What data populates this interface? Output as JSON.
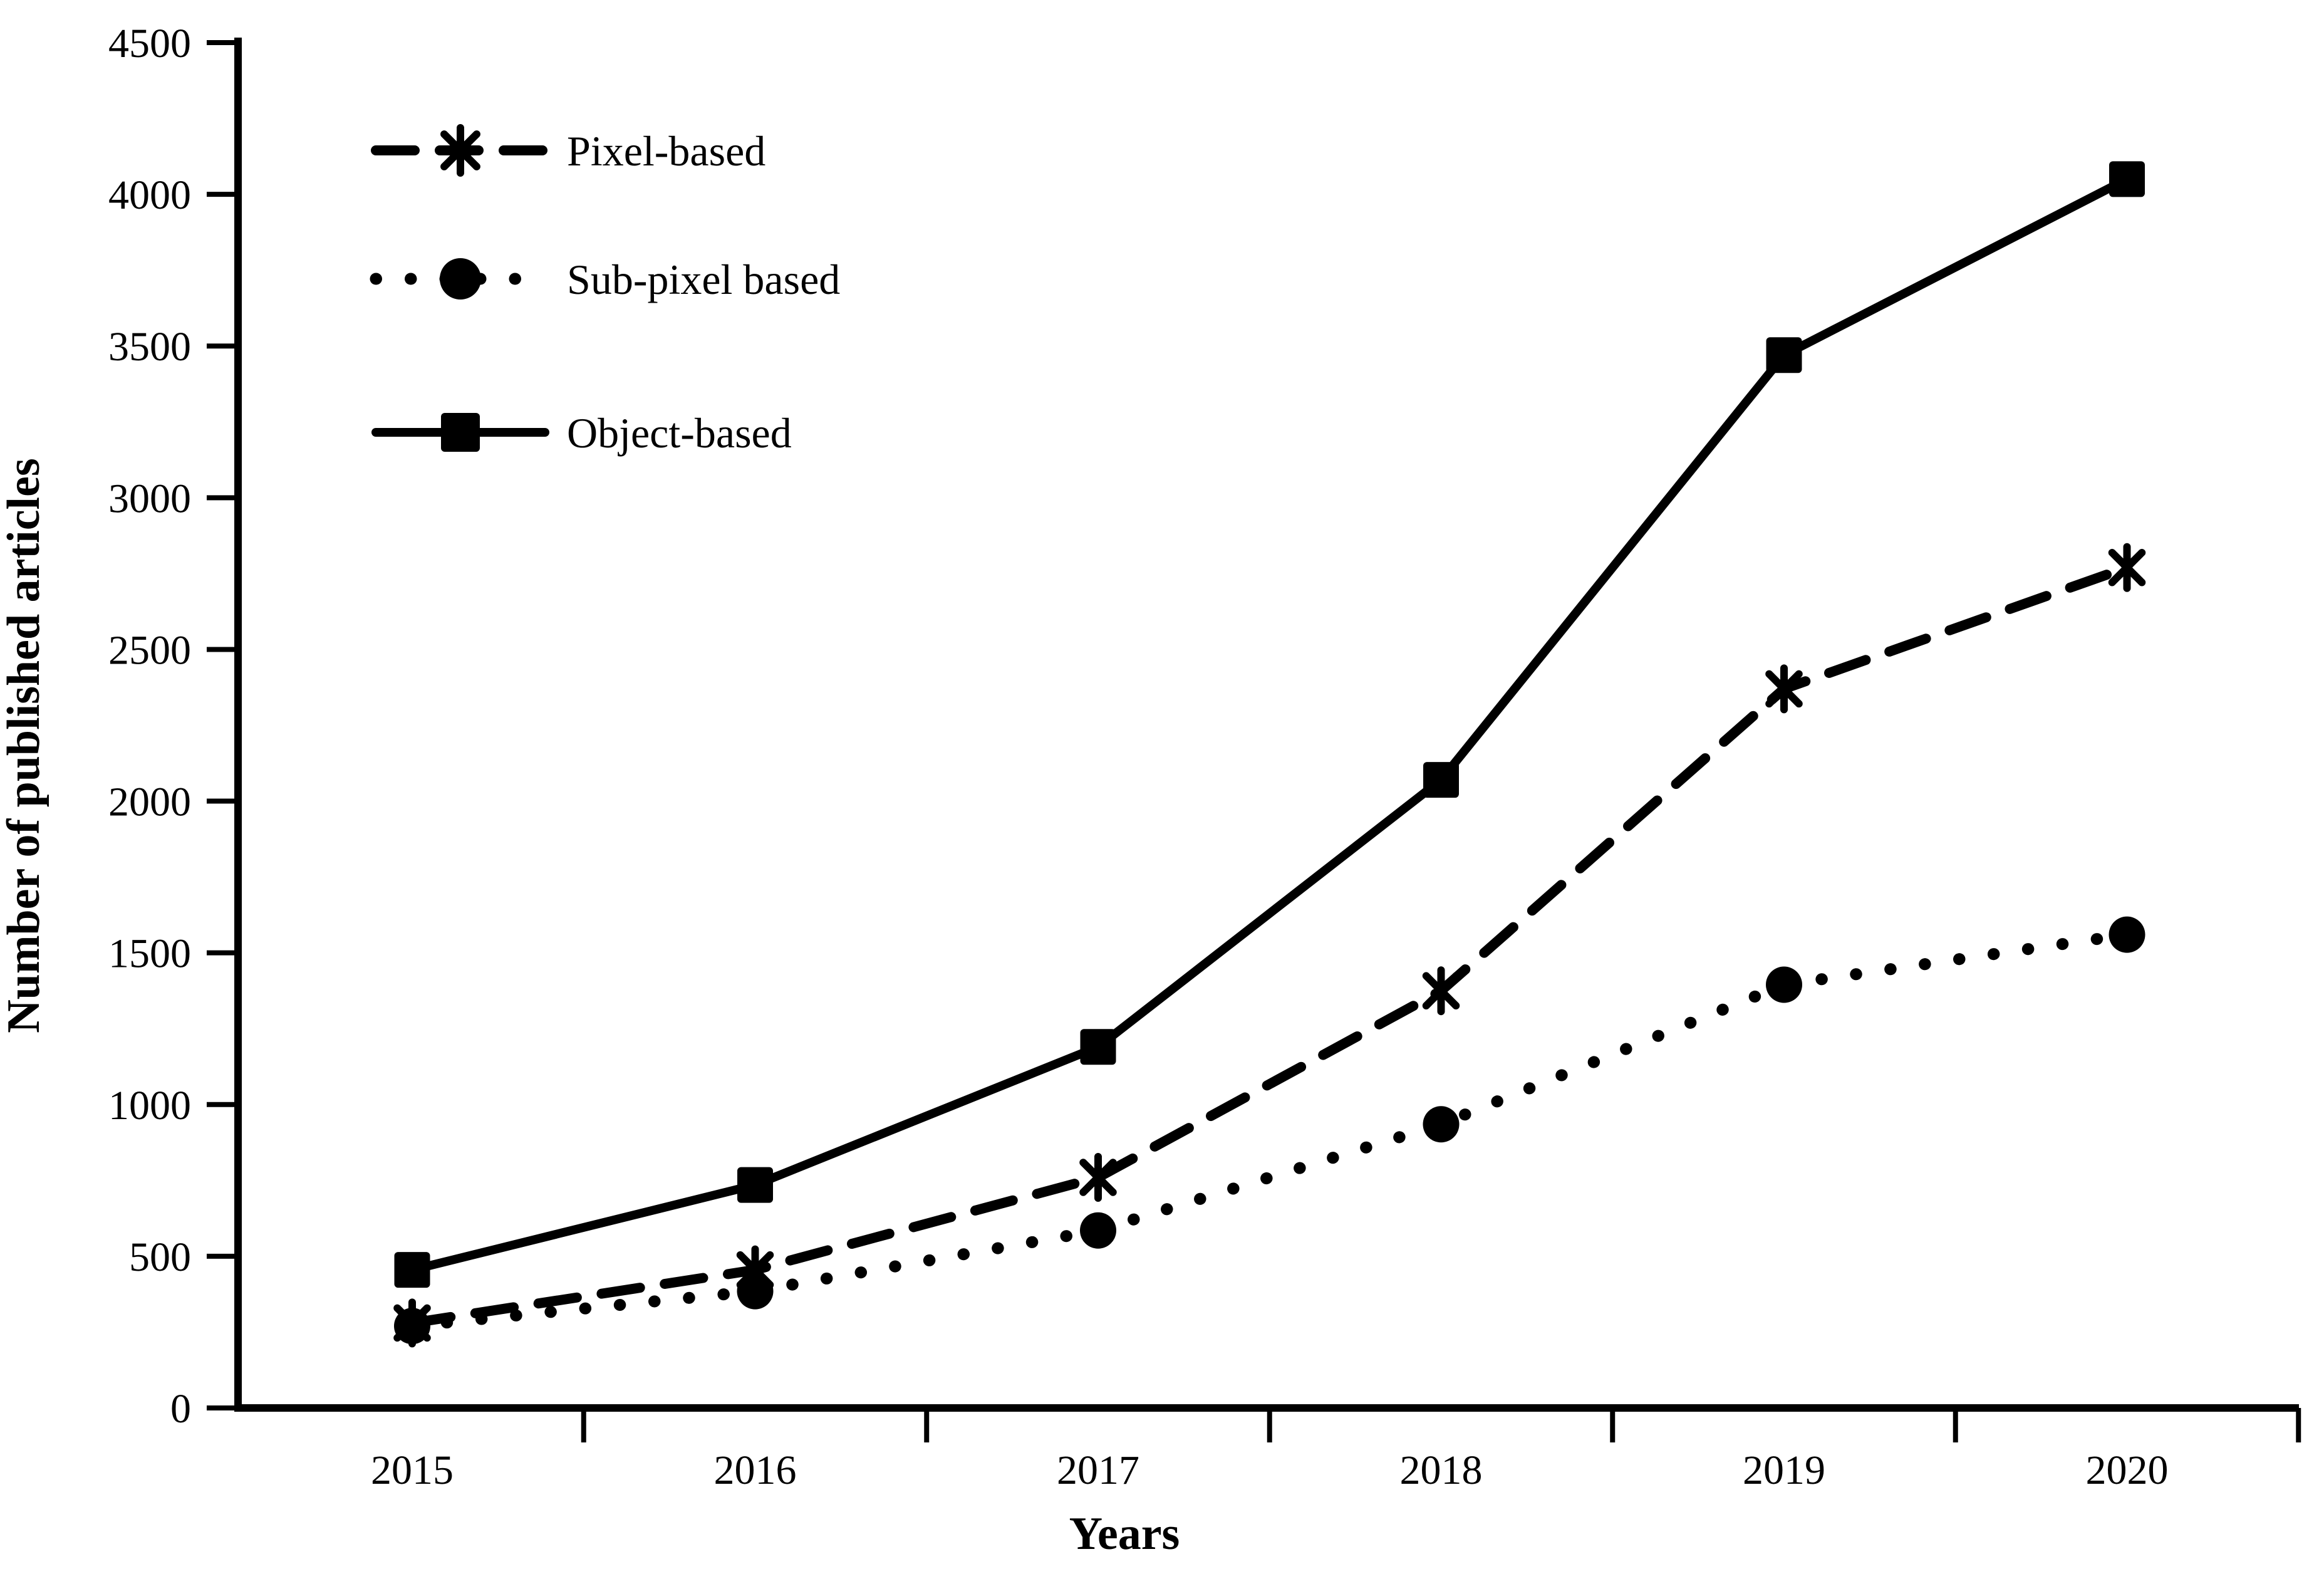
{
  "chart_data": {
    "type": "line",
    "title": "",
    "xlabel": "Years",
    "ylabel": "Number of published articles",
    "categories": [
      "2015",
      "2016",
      "2017",
      "2018",
      "2019",
      "2020"
    ],
    "y_ticks": [
      0,
      500,
      1000,
      1500,
      2000,
      2500,
      3000,
      3500,
      4000,
      4500
    ],
    "ylim": [
      0,
      4500
    ],
    "grid": false,
    "legend_position": "inside-top-left",
    "background_color": "#ffffff",
    "line_color": "#000000",
    "series": [
      {
        "name": "Pixel-based",
        "marker": "asterisk",
        "line_style": "dashed",
        "values": [
          280,
          455,
          760,
          1375,
          2370,
          2770
        ]
      },
      {
        "name": "Sub-pixel based",
        "marker": "circle",
        "line_style": "dotted",
        "values": [
          270,
          385,
          585,
          935,
          1395,
          1560
        ]
      },
      {
        "name": "Object-based",
        "marker": "square",
        "line_style": "solid",
        "values": [
          455,
          735,
          1190,
          2070,
          3470,
          4050
        ]
      }
    ]
  }
}
